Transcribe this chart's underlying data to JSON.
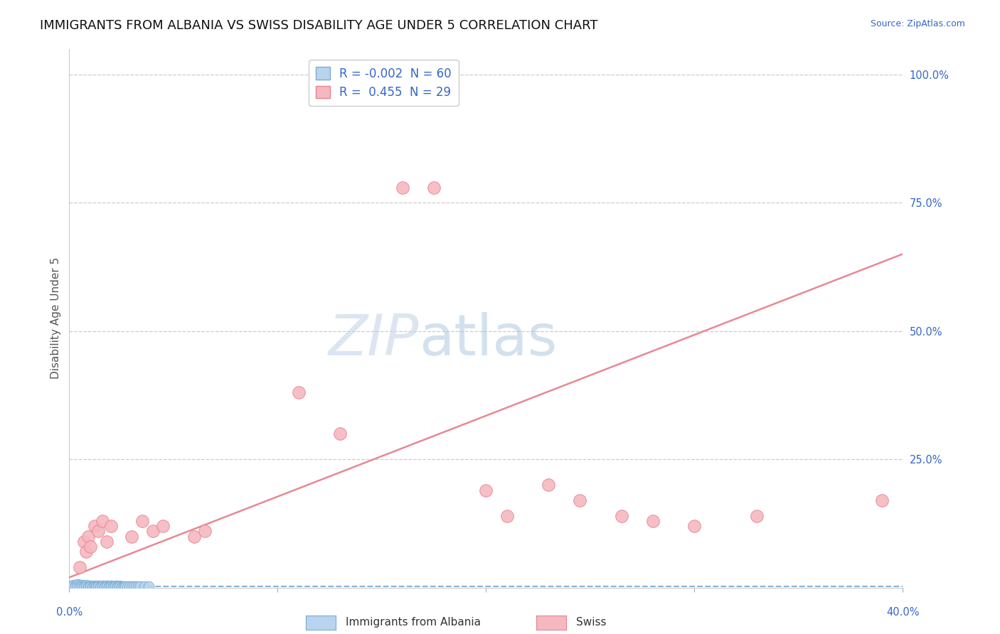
{
  "title": "IMMIGRANTS FROM ALBANIA VS SWISS DISABILITY AGE UNDER 5 CORRELATION CHART",
  "source": "Source: ZipAtlas.com",
  "ylabel": "Disability Age Under 5",
  "blue_R": "-0.002",
  "blue_N": "60",
  "pink_R": "0.455",
  "pink_N": "29",
  "blue_color": "#b8d4ee",
  "pink_color": "#f5b8c0",
  "blue_edge_color": "#7aadd4",
  "pink_edge_color": "#e8828e",
  "blue_line_color": "#7aadd4",
  "pink_line_color": "#e8828e",
  "blue_scatter": [
    [
      0.001,
      0.004
    ],
    [
      0.002,
      0.005
    ],
    [
      0.003,
      0.006
    ],
    [
      0.003,
      0.003
    ],
    [
      0.004,
      0.007
    ],
    [
      0.004,
      0.002
    ],
    [
      0.005,
      0.005
    ],
    [
      0.005,
      0.001
    ],
    [
      0.006,
      0.006
    ],
    [
      0.006,
      0.002
    ],
    [
      0.007,
      0.004
    ],
    [
      0.007,
      0.001
    ],
    [
      0.008,
      0.005
    ],
    [
      0.008,
      0.003
    ],
    [
      0.009,
      0.003
    ],
    [
      0.009,
      0.001
    ],
    [
      0.01,
      0.004
    ],
    [
      0.01,
      0.002
    ],
    [
      0.011,
      0.003
    ],
    [
      0.011,
      0.001
    ],
    [
      0.012,
      0.004
    ],
    [
      0.012,
      0.002
    ],
    [
      0.013,
      0.003
    ],
    [
      0.013,
      0.001
    ],
    [
      0.014,
      0.004
    ],
    [
      0.014,
      0.002
    ],
    [
      0.015,
      0.003
    ],
    [
      0.015,
      0.001
    ],
    [
      0.016,
      0.004
    ],
    [
      0.016,
      0.002
    ],
    [
      0.017,
      0.003
    ],
    [
      0.017,
      0.001
    ],
    [
      0.018,
      0.004
    ],
    [
      0.018,
      0.002
    ],
    [
      0.019,
      0.003
    ],
    [
      0.019,
      0.001
    ],
    [
      0.02,
      0.004
    ],
    [
      0.02,
      0.002
    ],
    [
      0.021,
      0.003
    ],
    [
      0.021,
      0.001
    ],
    [
      0.022,
      0.004
    ],
    [
      0.022,
      0.002
    ],
    [
      0.023,
      0.003
    ],
    [
      0.023,
      0.001
    ],
    [
      0.024,
      0.004
    ],
    [
      0.024,
      0.002
    ],
    [
      0.025,
      0.003
    ],
    [
      0.025,
      0.001
    ],
    [
      0.026,
      0.003
    ],
    [
      0.026,
      0.001
    ],
    [
      0.027,
      0.002
    ],
    [
      0.028,
      0.003
    ],
    [
      0.029,
      0.002
    ],
    [
      0.03,
      0.003
    ],
    [
      0.031,
      0.002
    ],
    [
      0.032,
      0.003
    ],
    [
      0.033,
      0.002
    ],
    [
      0.034,
      0.003
    ],
    [
      0.036,
      0.002
    ],
    [
      0.038,
      0.002
    ]
  ],
  "pink_scatter": [
    [
      0.005,
      0.04
    ],
    [
      0.007,
      0.09
    ],
    [
      0.008,
      0.07
    ],
    [
      0.009,
      0.1
    ],
    [
      0.01,
      0.08
    ],
    [
      0.012,
      0.12
    ],
    [
      0.014,
      0.11
    ],
    [
      0.016,
      0.13
    ],
    [
      0.018,
      0.09
    ],
    [
      0.02,
      0.12
    ],
    [
      0.03,
      0.1
    ],
    [
      0.035,
      0.13
    ],
    [
      0.04,
      0.11
    ],
    [
      0.045,
      0.12
    ],
    [
      0.06,
      0.1
    ],
    [
      0.065,
      0.11
    ],
    [
      0.11,
      0.38
    ],
    [
      0.13,
      0.3
    ],
    [
      0.16,
      0.78
    ],
    [
      0.175,
      0.78
    ],
    [
      0.2,
      0.19
    ],
    [
      0.21,
      0.14
    ],
    [
      0.23,
      0.2
    ],
    [
      0.245,
      0.17
    ],
    [
      0.265,
      0.14
    ],
    [
      0.28,
      0.13
    ],
    [
      0.3,
      0.12
    ],
    [
      0.33,
      0.14
    ],
    [
      0.39,
      0.17
    ]
  ],
  "pink_line_x": [
    0.0,
    0.4
  ],
  "pink_line_y": [
    0.02,
    0.65
  ],
  "blue_line_x": [
    0.0,
    0.4
  ],
  "blue_line_y": [
    0.003,
    0.003
  ],
  "xlim": [
    0.0,
    0.4
  ],
  "ylim": [
    0.0,
    1.05
  ],
  "title_fontsize": 13,
  "axis_label_fontsize": 11,
  "tick_fontsize": 10.5,
  "background_color": "#ffffff",
  "grid_color": "#cccccc",
  "watermark_zip": "ZIP",
  "watermark_atlas": "atlas",
  "right_ytick_values": [
    1.0,
    0.75,
    0.5,
    0.25
  ],
  "right_ytick_labels": [
    "100.0%",
    "75.0%",
    "50.0%",
    "25.0%"
  ],
  "legend_label_blue": "Immigrants from Albania",
  "legend_label_pink": "Swiss"
}
